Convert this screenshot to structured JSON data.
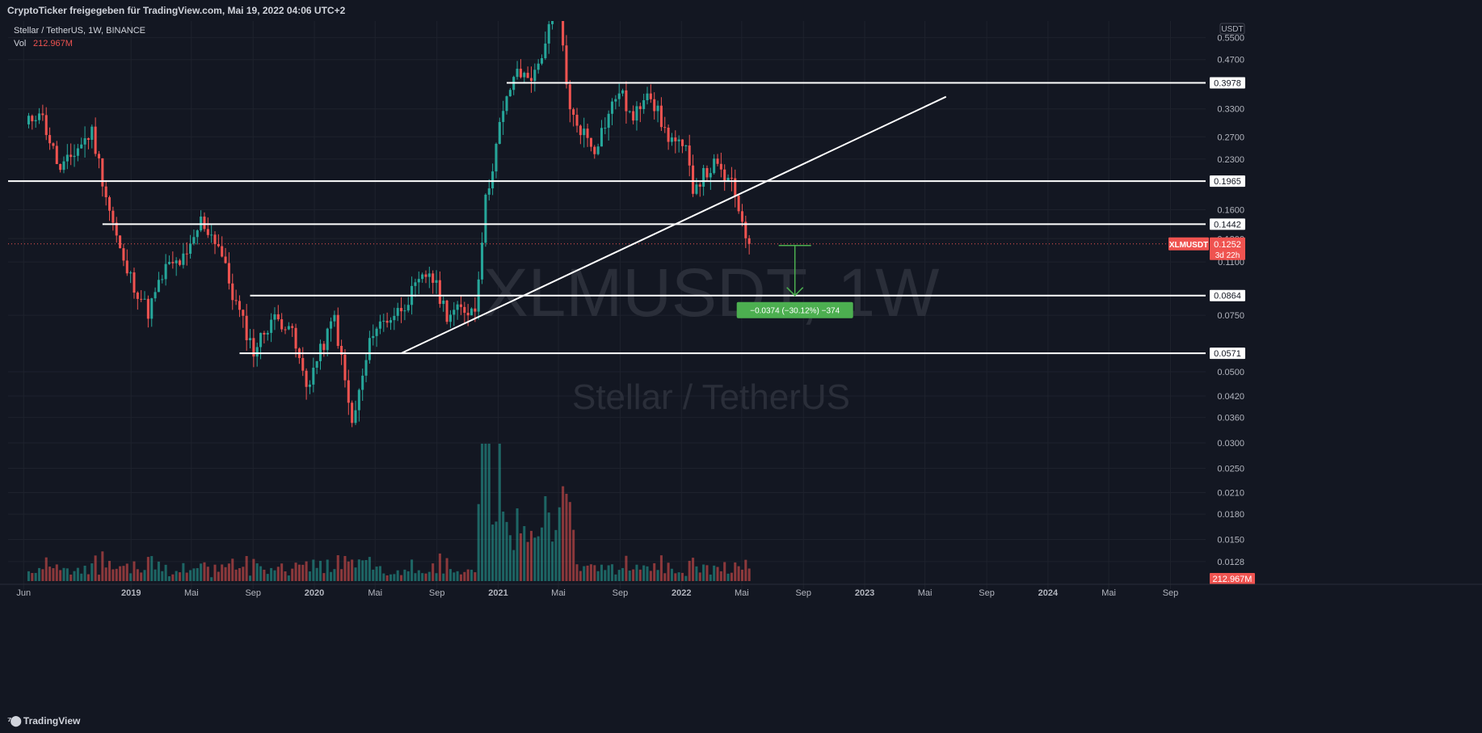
{
  "header": {
    "share_text": "CryptoTicker freigegeben für TradingView.com, Mai 19, 2022 04:06 UTC+2"
  },
  "legend": {
    "symbol_line": "Stellar / TetherUS, 1W, BINANCE",
    "vol_label": "Vol",
    "vol_value": "212.967M"
  },
  "watermark": {
    "ticker": "XLMUSDT, 1W",
    "name": "Stellar / TetherUS"
  },
  "price_axis": {
    "currency": "USDT",
    "last_label": "XLMUSDT",
    "last_price": "0.1252",
    "countdown": "3d 22h",
    "vol_badge": "212.967M"
  },
  "measure_label": "−0.0374 (−30.12%) −374",
  "footer": {
    "brand": "TradingView"
  },
  "colors": {
    "bg": "#131722",
    "grid": "#1e222d",
    "up": "#26a69a",
    "down": "#ef5350",
    "text": "#b2b5be",
    "white": "#ffffff",
    "measure": "#4caf50"
  },
  "chart_data": {
    "type": "candlestick",
    "symbol": "XLMUSDT",
    "interval": "1W",
    "exchange": "BINANCE",
    "y_scale": "log",
    "ylim": [
      0.0105,
      0.62
    ],
    "x_domain": [
      "2018-05-01",
      "2024-11-10"
    ],
    "y_ticks": [
      "0.5500",
      "0.4700",
      "0.3300",
      "0.2700",
      "0.2300",
      "0.1600",
      "0.1300",
      "0.1100",
      "0.0750",
      "0.0500",
      "0.0420",
      "0.0360",
      "0.0300",
      "0.0250",
      "0.0210",
      "0.0180",
      "0.0150",
      "0.0128"
    ],
    "x_ticks": [
      {
        "label": "Jun",
        "date": "2018-06-01"
      },
      {
        "label": "2019",
        "date": "2019-01-01"
      },
      {
        "label": "Mai",
        "date": "2019-05-01"
      },
      {
        "label": "Sep",
        "date": "2019-09-01"
      },
      {
        "label": "2020",
        "date": "2020-01-01"
      },
      {
        "label": "Mai",
        "date": "2020-05-01"
      },
      {
        "label": "Sep",
        "date": "2020-09-01"
      },
      {
        "label": "2021",
        "date": "2021-01-01"
      },
      {
        "label": "Mai",
        "date": "2021-05-01"
      },
      {
        "label": "Sep",
        "date": "2021-09-01"
      },
      {
        "label": "2022",
        "date": "2022-01-01"
      },
      {
        "label": "Mai",
        "date": "2022-05-01"
      },
      {
        "label": "Sep",
        "date": "2022-09-01"
      },
      {
        "label": "2023",
        "date": "2023-01-01"
      },
      {
        "label": "Mai",
        "date": "2023-05-01"
      },
      {
        "label": "Sep",
        "date": "2023-09-01"
      },
      {
        "label": "2024",
        "date": "2024-01-01"
      },
      {
        "label": "Mai",
        "date": "2024-05-01"
      },
      {
        "label": "Sep",
        "date": "2024-09-01"
      }
    ],
    "key_price_path": [
      {
        "date": "2018-06-04",
        "price": 0.29
      },
      {
        "date": "2018-07-02",
        "price": 0.33
      },
      {
        "date": "2018-08-13",
        "price": 0.21
      },
      {
        "date": "2018-09-17",
        "price": 0.25
      },
      {
        "date": "2018-10-15",
        "price": 0.28
      },
      {
        "date": "2018-11-19",
        "price": 0.16
      },
      {
        "date": "2018-12-17",
        "price": 0.108
      },
      {
        "date": "2019-02-04",
        "price": 0.077
      },
      {
        "date": "2019-03-11",
        "price": 0.105
      },
      {
        "date": "2019-04-22",
        "price": 0.113
      },
      {
        "date": "2019-05-20",
        "price": 0.148
      },
      {
        "date": "2019-06-24",
        "price": 0.125
      },
      {
        "date": "2019-07-22",
        "price": 0.087
      },
      {
        "date": "2019-09-02",
        "price": 0.058
      },
      {
        "date": "2019-10-07",
        "price": 0.073
      },
      {
        "date": "2019-11-11",
        "price": 0.071
      },
      {
        "date": "2019-12-16",
        "price": 0.045
      },
      {
        "date": "2020-02-10",
        "price": 0.074
      },
      {
        "date": "2020-03-16",
        "price": 0.034
      },
      {
        "date": "2020-04-27",
        "price": 0.068
      },
      {
        "date": "2020-06-15",
        "price": 0.077
      },
      {
        "date": "2020-08-17",
        "price": 0.103
      },
      {
        "date": "2020-09-21",
        "price": 0.076
      },
      {
        "date": "2020-11-16",
        "price": 0.079
      },
      {
        "date": "2020-12-07",
        "price": 0.17
      },
      {
        "date": "2021-01-04",
        "price": 0.29
      },
      {
        "date": "2021-02-01",
        "price": 0.42
      },
      {
        "date": "2021-03-15",
        "price": 0.42
      },
      {
        "date": "2021-04-12",
        "price": 0.58
      },
      {
        "date": "2021-05-03",
        "price": 0.66
      },
      {
        "date": "2021-05-24",
        "price": 0.32
      },
      {
        "date": "2021-07-12",
        "price": 0.25
      },
      {
        "date": "2021-08-30",
        "price": 0.38
      },
      {
        "date": "2021-09-27",
        "price": 0.3
      },
      {
        "date": "2021-10-25",
        "price": 0.39
      },
      {
        "date": "2021-11-29",
        "price": 0.28
      },
      {
        "date": "2022-01-10",
        "price": 0.24
      },
      {
        "date": "2022-01-24",
        "price": 0.19
      },
      {
        "date": "2022-03-07",
        "price": 0.22
      },
      {
        "date": "2022-04-11",
        "price": 0.19
      },
      {
        "date": "2022-05-02",
        "price": 0.15
      },
      {
        "date": "2022-05-16",
        "price": 0.1252
      }
    ],
    "volume_max_week": {
      "date": "2020-12-14",
      "approx_value": "max"
    },
    "horizontal_levels": [
      {
        "price": 0.3978,
        "label": "0.3978",
        "from_date": "2021-01-18"
      },
      {
        "price": 0.1965,
        "label": "0.1965",
        "from_date": "2018-05-01"
      },
      {
        "price": 0.1442,
        "label": "0.1442",
        "from_date": "2018-11-05"
      },
      {
        "price": 0.0864,
        "label": "0.0864",
        "from_date": "2019-08-26"
      },
      {
        "price": 0.0571,
        "label": "0.0571",
        "from_date": "2019-08-05"
      }
    ],
    "trendline": {
      "from": {
        "date": "2020-06-22",
        "price": 0.0571
      },
      "to": {
        "date": "2023-06-12",
        "price": 0.36
      }
    },
    "measure": {
      "date": "2022-08-15",
      "from_price": 0.1238,
      "to_price": 0.0864,
      "change": "−0.0374",
      "percent": "−30.12%",
      "ticks": "−374"
    }
  }
}
